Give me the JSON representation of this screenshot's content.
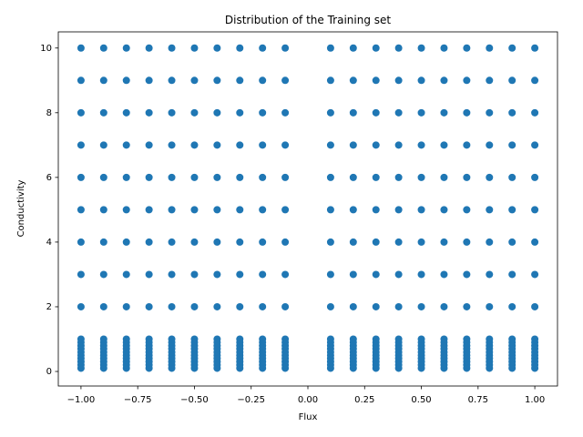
{
  "chart_data": {
    "type": "scatter",
    "title": "Distribution of the Training set",
    "x_label": "Flux",
    "y_label": "Conductivity",
    "color": "#1f77b4",
    "x": [
      -1.0,
      -1.0,
      -1.0,
      -1.0,
      -1.0,
      -1.0,
      -1.0,
      -1.0,
      -1.0,
      -1.0,
      -1.0,
      -1.0,
      -1.0,
      -1.0,
      -1.0,
      -1.0,
      -1.0,
      -1.0,
      -1.0,
      -0.9,
      -0.9,
      -0.9,
      -0.9,
      -0.9,
      -0.9,
      -0.9,
      -0.9,
      -0.9,
      -0.9,
      -0.9,
      -0.9,
      -0.9,
      -0.9,
      -0.9,
      -0.9,
      -0.9,
      -0.9,
      -0.9,
      -0.8,
      -0.8,
      -0.8,
      -0.8,
      -0.8,
      -0.8,
      -0.8,
      -0.8,
      -0.8,
      -0.8,
      -0.8,
      -0.8,
      -0.8,
      -0.8,
      -0.8,
      -0.8,
      -0.8,
      -0.8,
      -0.8,
      -0.7,
      -0.7,
      -0.7,
      -0.7,
      -0.7,
      -0.7,
      -0.7,
      -0.7,
      -0.7,
      -0.7,
      -0.7,
      -0.7,
      -0.7,
      -0.7,
      -0.7,
      -0.7,
      -0.7,
      -0.7,
      -0.7,
      -0.6,
      -0.6,
      -0.6,
      -0.6,
      -0.6,
      -0.6,
      -0.6,
      -0.6,
      -0.6,
      -0.6,
      -0.6,
      -0.6,
      -0.6,
      -0.6,
      -0.6,
      -0.6,
      -0.6,
      -0.6,
      -0.6,
      -0.5,
      -0.5,
      -0.5,
      -0.5,
      -0.5,
      -0.5,
      -0.5,
      -0.5,
      -0.5,
      -0.5,
      -0.5,
      -0.5,
      -0.5,
      -0.5,
      -0.5,
      -0.5,
      -0.5,
      -0.5,
      -0.5,
      -0.4,
      -0.4,
      -0.4,
      -0.4,
      -0.4,
      -0.4,
      -0.4,
      -0.4,
      -0.4,
      -0.4,
      -0.4,
      -0.4,
      -0.4,
      -0.4,
      -0.4,
      -0.4,
      -0.4,
      -0.4,
      -0.4,
      -0.3,
      -0.3,
      -0.3,
      -0.3,
      -0.3,
      -0.3,
      -0.3,
      -0.3,
      -0.3,
      -0.3,
      -0.3,
      -0.3,
      -0.3,
      -0.3,
      -0.3,
      -0.3,
      -0.3,
      -0.3,
      -0.3,
      -0.2,
      -0.2,
      -0.2,
      -0.2,
      -0.2,
      -0.2,
      -0.2,
      -0.2,
      -0.2,
      -0.2,
      -0.2,
      -0.2,
      -0.2,
      -0.2,
      -0.2,
      -0.2,
      -0.2,
      -0.2,
      -0.2,
      -0.1,
      -0.1,
      -0.1,
      -0.1,
      -0.1,
      -0.1,
      -0.1,
      -0.1,
      -0.1,
      -0.1,
      -0.1,
      -0.1,
      -0.1,
      -0.1,
      -0.1,
      -0.1,
      -0.1,
      -0.1,
      -0.1,
      0.1,
      0.1,
      0.1,
      0.1,
      0.1,
      0.1,
      0.1,
      0.1,
      0.1,
      0.1,
      0.1,
      0.1,
      0.1,
      0.1,
      0.1,
      0.1,
      0.1,
      0.1,
      0.1,
      0.2,
      0.2,
      0.2,
      0.2,
      0.2,
      0.2,
      0.2,
      0.2,
      0.2,
      0.2,
      0.2,
      0.2,
      0.2,
      0.2,
      0.2,
      0.2,
      0.2,
      0.2,
      0.2,
      0.3,
      0.3,
      0.3,
      0.3,
      0.3,
      0.3,
      0.3,
      0.3,
      0.3,
      0.3,
      0.3,
      0.3,
      0.3,
      0.3,
      0.3,
      0.3,
      0.3,
      0.3,
      0.3,
      0.4,
      0.4,
      0.4,
      0.4,
      0.4,
      0.4,
      0.4,
      0.4,
      0.4,
      0.4,
      0.4,
      0.4,
      0.4,
      0.4,
      0.4,
      0.4,
      0.4,
      0.4,
      0.4,
      0.5,
      0.5,
      0.5,
      0.5,
      0.5,
      0.5,
      0.5,
      0.5,
      0.5,
      0.5,
      0.5,
      0.5,
      0.5,
      0.5,
      0.5,
      0.5,
      0.5,
      0.5,
      0.5,
      0.6,
      0.6,
      0.6,
      0.6,
      0.6,
      0.6,
      0.6,
      0.6,
      0.6,
      0.6,
      0.6,
      0.6,
      0.6,
      0.6,
      0.6,
      0.6,
      0.6,
      0.6,
      0.6,
      0.7,
      0.7,
      0.7,
      0.7,
      0.7,
      0.7,
      0.7,
      0.7,
      0.7,
      0.7,
      0.7,
      0.7,
      0.7,
      0.7,
      0.7,
      0.7,
      0.7,
      0.7,
      0.7,
      0.8,
      0.8,
      0.8,
      0.8,
      0.8,
      0.8,
      0.8,
      0.8,
      0.8,
      0.8,
      0.8,
      0.8,
      0.8,
      0.8,
      0.8,
      0.8,
      0.8,
      0.8,
      0.8,
      0.9,
      0.9,
      0.9,
      0.9,
      0.9,
      0.9,
      0.9,
      0.9,
      0.9,
      0.9,
      0.9,
      0.9,
      0.9,
      0.9,
      0.9,
      0.9,
      0.9,
      0.9,
      0.9,
      1.0,
      1.0,
      1.0,
      1.0,
      1.0,
      1.0,
      1.0,
      1.0,
      1.0,
      1.0,
      1.0,
      1.0,
      1.0,
      1.0,
      1.0,
      1.0,
      1.0,
      1.0,
      1.0
    ],
    "values": [
      0.1,
      0.2,
      0.3,
      0.4,
      0.5,
      0.6,
      0.7,
      0.8,
      0.9,
      1.0,
      2,
      3,
      4,
      5,
      6,
      7,
      8,
      9,
      10,
      0.1,
      0.2,
      0.3,
      0.4,
      0.5,
      0.6,
      0.7,
      0.8,
      0.9,
      1.0,
      2,
      3,
      4,
      5,
      6,
      7,
      8,
      9,
      10,
      0.1,
      0.2,
      0.3,
      0.4,
      0.5,
      0.6,
      0.7,
      0.8,
      0.9,
      1.0,
      2,
      3,
      4,
      5,
      6,
      7,
      8,
      9,
      10,
      0.1,
      0.2,
      0.3,
      0.4,
      0.5,
      0.6,
      0.7,
      0.8,
      0.9,
      1.0,
      2,
      3,
      4,
      5,
      6,
      7,
      8,
      9,
      10,
      0.1,
      0.2,
      0.3,
      0.4,
      0.5,
      0.6,
      0.7,
      0.8,
      0.9,
      1.0,
      2,
      3,
      4,
      5,
      6,
      7,
      8,
      9,
      10,
      0.1,
      0.2,
      0.3,
      0.4,
      0.5,
      0.6,
      0.7,
      0.8,
      0.9,
      1.0,
      2,
      3,
      4,
      5,
      6,
      7,
      8,
      9,
      10,
      0.1,
      0.2,
      0.3,
      0.4,
      0.5,
      0.6,
      0.7,
      0.8,
      0.9,
      1.0,
      2,
      3,
      4,
      5,
      6,
      7,
      8,
      9,
      10,
      0.1,
      0.2,
      0.3,
      0.4,
      0.5,
      0.6,
      0.7,
      0.8,
      0.9,
      1.0,
      2,
      3,
      4,
      5,
      6,
      7,
      8,
      9,
      10,
      0.1,
      0.2,
      0.3,
      0.4,
      0.5,
      0.6,
      0.7,
      0.8,
      0.9,
      1.0,
      2,
      3,
      4,
      5,
      6,
      7,
      8,
      9,
      10,
      0.1,
      0.2,
      0.3,
      0.4,
      0.5,
      0.6,
      0.7,
      0.8,
      0.9,
      1.0,
      2,
      3,
      4,
      5,
      6,
      7,
      8,
      9,
      10,
      0.1,
      0.2,
      0.3,
      0.4,
      0.5,
      0.6,
      0.7,
      0.8,
      0.9,
      1.0,
      2,
      3,
      4,
      5,
      6,
      7,
      8,
      9,
      10,
      0.1,
      0.2,
      0.3,
      0.4,
      0.5,
      0.6,
      0.7,
      0.8,
      0.9,
      1.0,
      2,
      3,
      4,
      5,
      6,
      7,
      8,
      9,
      10,
      0.1,
      0.2,
      0.3,
      0.4,
      0.5,
      0.6,
      0.7,
      0.8,
      0.9,
      1.0,
      2,
      3,
      4,
      5,
      6,
      7,
      8,
      9,
      10,
      0.1,
      0.2,
      0.3,
      0.4,
      0.5,
      0.6,
      0.7,
      0.8,
      0.9,
      1.0,
      2,
      3,
      4,
      5,
      6,
      7,
      8,
      9,
      10,
      0.1,
      0.2,
      0.3,
      0.4,
      0.5,
      0.6,
      0.7,
      0.8,
      0.9,
      1.0,
      2,
      3,
      4,
      5,
      6,
      7,
      8,
      9,
      10,
      0.1,
      0.2,
      0.3,
      0.4,
      0.5,
      0.6,
      0.7,
      0.8,
      0.9,
      1.0,
      2,
      3,
      4,
      5,
      6,
      7,
      8,
      9,
      10,
      0.1,
      0.2,
      0.3,
      0.4,
      0.5,
      0.6,
      0.7,
      0.8,
      0.9,
      1.0,
      2,
      3,
      4,
      5,
      6,
      7,
      8,
      9,
      10,
      0.1,
      0.2,
      0.3,
      0.4,
      0.5,
      0.6,
      0.7,
      0.8,
      0.9,
      1.0,
      2,
      3,
      4,
      5,
      6,
      7,
      8,
      9,
      10,
      0.1,
      0.2,
      0.3,
      0.4,
      0.5,
      0.6,
      0.7,
      0.8,
      0.9,
      1.0,
      2,
      3,
      4,
      5,
      6,
      7,
      8,
      9,
      10,
      0.1,
      0.2,
      0.3,
      0.4,
      0.5,
      0.6,
      0.7,
      0.8,
      0.9,
      1.0,
      2,
      3,
      4,
      5,
      6,
      7,
      8,
      9,
      10
    ],
    "xlim": [
      -1.1,
      1.1
    ],
    "ylim": [
      -0.45,
      10.5
    ],
    "xticks": [
      {
        "value": -1.0,
        "label": "−1.00"
      },
      {
        "value": -0.75,
        "label": "−0.75"
      },
      {
        "value": -0.5,
        "label": "−0.50"
      },
      {
        "value": -0.25,
        "label": "−0.25"
      },
      {
        "value": 0.0,
        "label": "0.00"
      },
      {
        "value": 0.25,
        "label": "0.25"
      },
      {
        "value": 0.5,
        "label": "0.50"
      },
      {
        "value": 0.75,
        "label": "0.75"
      },
      {
        "value": 1.0,
        "label": "1.00"
      }
    ],
    "yticks": [
      0,
      2,
      4,
      6,
      8,
      10
    ],
    "grid": false
  }
}
